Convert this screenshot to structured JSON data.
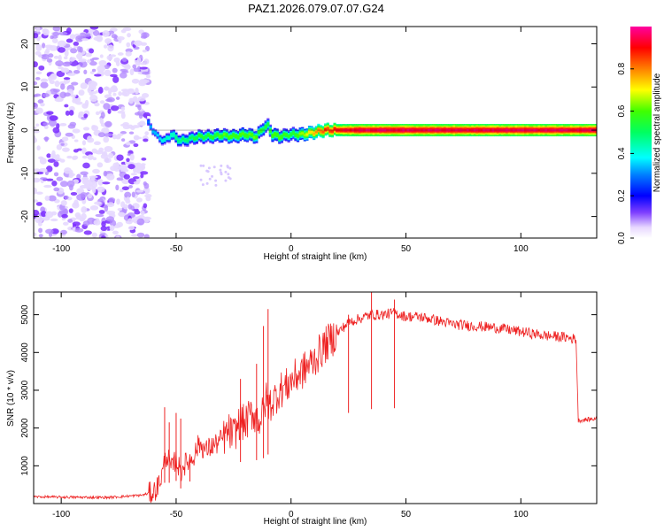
{
  "title": "PAZ1.2026.079.07.07.G24",
  "chart_data": [
    {
      "type": "heatmap",
      "title": "PAZ1.2026.079.07.07.G24",
      "xlabel": "Height of straight line (km)",
      "ylabel": "Frequency (Hz)",
      "xlim": [
        -112,
        133
      ],
      "ylim": [
        -25,
        24
      ],
      "xticks": [
        -100,
        -50,
        0,
        50,
        100
      ],
      "yticks": [
        -20,
        -10,
        0,
        10,
        20
      ],
      "colorbar": {
        "label": "Normalized spectral amplitude",
        "range": [
          0,
          1
        ],
        "ticks": [
          0.0,
          0.2,
          0.4,
          0.6,
          0.8
        ]
      },
      "noise_region": {
        "x_range": [
          -112,
          -62
        ],
        "y_range": [
          -25,
          24
        ],
        "amplitude": [
          0.05,
          0.2
        ]
      },
      "signal_ridge": {
        "x": [
          -62,
          -58,
          -55,
          -52,
          -48,
          -44,
          -40,
          -35,
          -30,
          -25,
          -20,
          -15,
          -12,
          -10,
          -8,
          -5,
          0,
          5,
          10,
          15,
          20,
          30,
          40,
          50,
          60,
          70,
          80,
          90,
          100,
          110,
          120,
          133
        ],
        "frequency": [
          1.5,
          -1.5,
          -2.5,
          -1.0,
          -2.5,
          -2.0,
          -1.5,
          -1.5,
          -1.2,
          -1.5,
          -1.0,
          -1.5,
          0.5,
          1.0,
          -1.0,
          -1.5,
          -1.0,
          -1.0,
          -0.5,
          0.0,
          0.0,
          0.0,
          0.0,
          0.0,
          0.0,
          0.0,
          0.0,
          0.0,
          0.0,
          0.0,
          0.0,
          0.0
        ],
        "amplitude": [
          0.3,
          0.35,
          0.4,
          0.45,
          0.5,
          0.5,
          0.55,
          0.55,
          0.6,
          0.6,
          0.6,
          0.6,
          0.55,
          0.55,
          0.6,
          0.6,
          0.55,
          0.65,
          0.75,
          0.85,
          0.9,
          0.95,
          0.95,
          0.95,
          0.95,
          0.95,
          0.95,
          0.95,
          0.95,
          0.95,
          0.95,
          0.95
        ]
      }
    },
    {
      "type": "line",
      "xlabel": "Height of straight line (km)",
      "ylabel": "SNR (10 * v/v)",
      "xlim": [
        -112,
        133
      ],
      "ylim": [
        0,
        5600
      ],
      "xticks": [
        -100,
        -50,
        0,
        50,
        100
      ],
      "yticks": [
        1000,
        2000,
        3000,
        4000,
        5000
      ],
      "color": "#ee2222",
      "series": [
        {
          "name": "SNR",
          "x": [
            -112,
            -100,
            -80,
            -65,
            -60,
            -58,
            -56,
            -55,
            -54,
            -52,
            -50,
            -48,
            -47,
            -45,
            -42,
            -40,
            -37,
            -35,
            -32,
            -30,
            -27,
            -25,
            -22,
            -20,
            -17,
            -15,
            -14,
            -12,
            -11,
            -10,
            -8,
            -5,
            -2,
            0,
            5,
            10,
            15,
            20,
            25,
            30,
            35,
            40,
            45,
            50,
            55,
            60,
            70,
            80,
            90,
            100,
            110,
            120,
            124,
            125,
            133
          ],
          "y": [
            180,
            170,
            160,
            220,
            300,
            450,
            800,
            1100,
            1300,
            900,
            1200,
            800,
            1000,
            1100,
            1300,
            1600,
            1400,
            1500,
            1600,
            1700,
            1900,
            1800,
            2200,
            2100,
            2400,
            2300,
            2200,
            2400,
            2800,
            2600,
            2700,
            3000,
            3100,
            3250,
            3500,
            3800,
            4200,
            4500,
            4800,
            4900,
            5000,
            5000,
            5050,
            4950,
            4950,
            4900,
            4750,
            4700,
            4650,
            4550,
            4450,
            4400,
            4350,
            2200,
            2250
          ]
        }
      ],
      "spikes": [
        {
          "x": -55,
          "y": 2550
        },
        {
          "x": -53,
          "y": 2150
        },
        {
          "x": -50,
          "y": 2400
        },
        {
          "x": -48,
          "y": 2250
        },
        {
          "x": -44,
          "y": 1300
        },
        {
          "x": -22,
          "y": 3300
        },
        {
          "x": -15,
          "y": 3700
        },
        {
          "x": -12,
          "y": 4700
        },
        {
          "x": -10,
          "y": 5150
        },
        {
          "x": 25,
          "y": 5000
        },
        {
          "x": 35,
          "y": 5600
        },
        {
          "x": 45,
          "y": 5400
        }
      ]
    }
  ]
}
